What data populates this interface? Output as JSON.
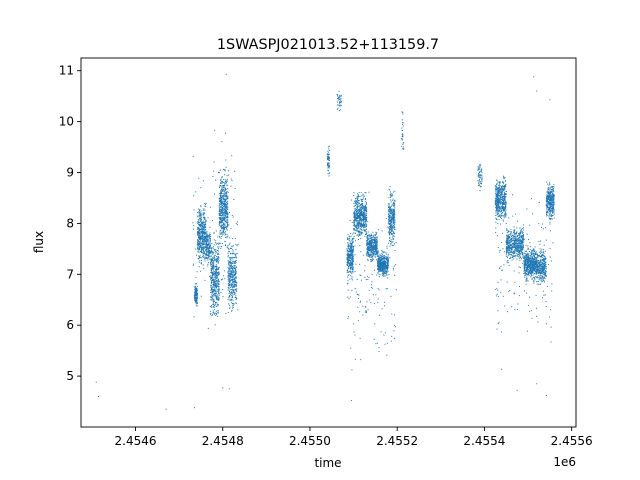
{
  "chart_data": {
    "type": "scatter",
    "title": "1SWASPJ021013.52+113159.7",
    "xlabel": "time",
    "ylabel": "flux",
    "x_offset_label": "1e6",
    "x_tick_labels": [
      "2.4546",
      "2.4548",
      "2.4550",
      "2.4552",
      "2.4554",
      "2.4556"
    ],
    "x_ticks": [
      2454600,
      2454800,
      2455000,
      2455200,
      2455400,
      2455600
    ],
    "y_ticks": [
      5,
      6,
      7,
      8,
      9,
      10,
      11
    ],
    "xlim": [
      2454475,
      2455610
    ],
    "ylim": [
      4.0,
      11.25
    ],
    "grid": false,
    "color": "#1f77b4",
    "series": [
      {
        "clusters": [
          {
            "x": [
              2454735,
              2454742
            ],
            "y": [
              6.3,
              6.9
            ],
            "n": 120
          },
          {
            "x": [
              2454742,
              2454762
            ],
            "y": [
              7.0,
              8.5
            ],
            "n": 450
          },
          {
            "x": [
              2454762,
              2454772
            ],
            "y": [
              7.1,
              8.0
            ],
            "n": 150
          },
          {
            "x": [
              2454772,
              2454792
            ],
            "y": [
              5.9,
              7.9
            ],
            "n": 450
          },
          {
            "x": [
              2454792,
              2454812
            ],
            "y": [
              7.4,
              9.2
            ],
            "n": 500
          },
          {
            "x": [
              2454812,
              2454832
            ],
            "y": [
              6.1,
              7.8
            ],
            "n": 350
          },
          {
            "x": [
              2454730,
              2454835
            ],
            "y": [
              5.3,
              10.2
            ],
            "n": 150
          },
          {
            "x": [
              2455040,
              2455045
            ],
            "y": [
              8.8,
              9.6
            ],
            "n": 60
          },
          {
            "x": [
              2455062,
              2455072
            ],
            "y": [
              10.1,
              10.7
            ],
            "n": 40
          },
          {
            "x": [
              2455085,
              2455100
            ],
            "y": [
              6.8,
              7.9
            ],
            "n": 300
          },
          {
            "x": [
              2455100,
              2455130
            ],
            "y": [
              7.6,
              8.7
            ],
            "n": 550
          },
          {
            "x": [
              2455130,
              2455155
            ],
            "y": [
              7.2,
              7.9
            ],
            "n": 400
          },
          {
            "x": [
              2455155,
              2455180
            ],
            "y": [
              6.9,
              7.5
            ],
            "n": 450
          },
          {
            "x": [
              2455180,
              2455195
            ],
            "y": [
              7.4,
              8.8
            ],
            "n": 300
          },
          {
            "x": [
              2455210,
              2455215
            ],
            "y": [
              9.2,
              10.3
            ],
            "n": 30
          },
          {
            "x": [
              2455085,
              2455200
            ],
            "y": [
              4.6,
              9.0
            ],
            "n": 150
          },
          {
            "x": [
              2455385,
              2455395
            ],
            "y": [
              8.6,
              9.3
            ],
            "n": 60
          },
          {
            "x": [
              2455425,
              2455450
            ],
            "y": [
              7.9,
              9.0
            ],
            "n": 500
          },
          {
            "x": [
              2455450,
              2455490
            ],
            "y": [
              7.2,
              8.0
            ],
            "n": 550
          },
          {
            "x": [
              2455490,
              2455520
            ],
            "y": [
              6.8,
              7.6
            ],
            "n": 550
          },
          {
            "x": [
              2455520,
              2455542
            ],
            "y": [
              6.7,
              7.6
            ],
            "n": 300
          },
          {
            "x": [
              2455542,
              2455560
            ],
            "y": [
              8.0,
              8.9
            ],
            "n": 350
          },
          {
            "x": [
              2455425,
              2455560
            ],
            "y": [
              4.8,
              9.4
            ],
            "n": 150
          }
        ],
        "isolated_points": [
          [
            2454510,
            4.88
          ],
          [
            2454515,
            4.6
          ],
          [
            2454670,
            4.35
          ],
          [
            2454735,
            4.38
          ],
          [
            2454800,
            4.77
          ],
          [
            2454808,
            10.93
          ],
          [
            2454815,
            4.75
          ],
          [
            2455095,
            4.52
          ],
          [
            2455513,
            10.88
          ],
          [
            2455520,
            10.6
          ],
          [
            2455550,
            10.43
          ],
          [
            2455542,
            4.62
          ],
          [
            2455520,
            4.85
          ],
          [
            2455475,
            4.72
          ]
        ]
      }
    ]
  }
}
